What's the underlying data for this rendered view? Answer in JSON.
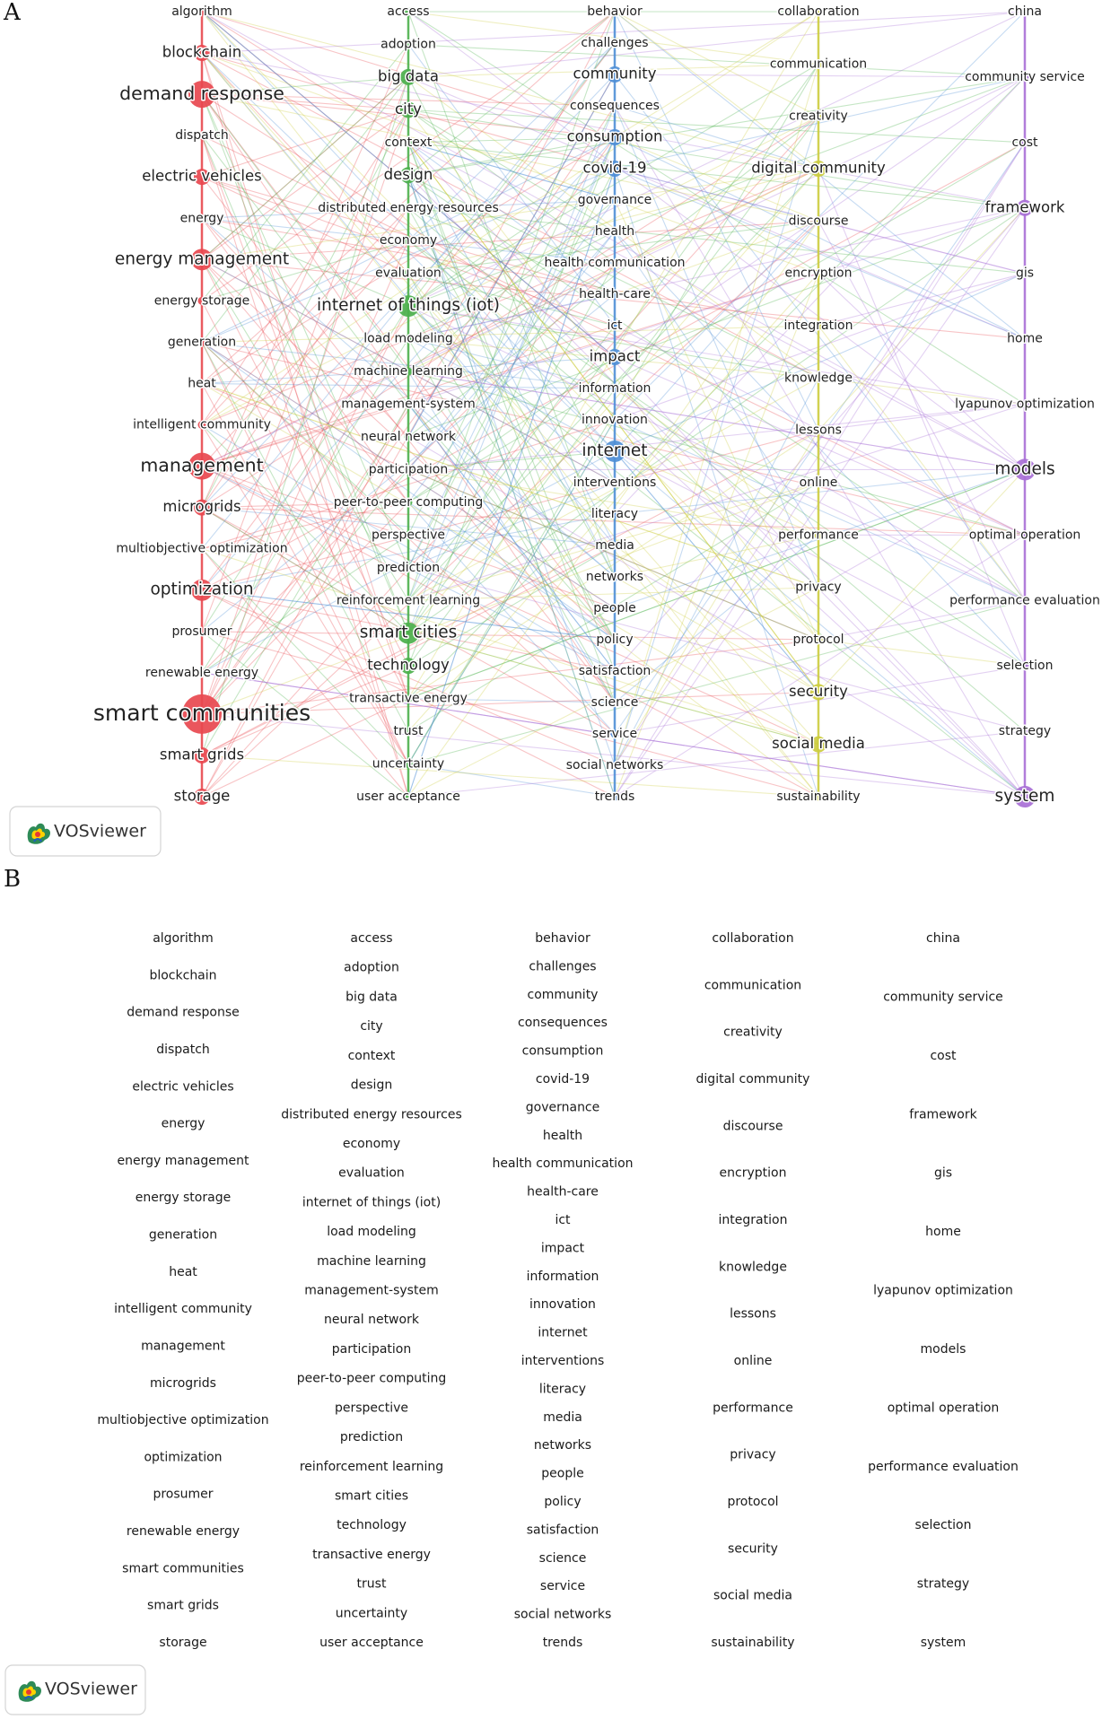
{
  "panels": {
    "a_label": "A",
    "b_label": "B",
    "logo_text": "VOSviewer"
  },
  "colors": {
    "cluster1": "#e8484f",
    "cluster2": "#4cb04c",
    "cluster3": "#4f8fd6",
    "cluster4": "#cccc3f",
    "cluster5": "#a86fd6"
  },
  "clusters": [
    {
      "id": "cluster1",
      "color": "#e8484f",
      "items": [
        {
          "label": "algorithm",
          "weight": 1
        },
        {
          "label": "blockchain",
          "weight": 2
        },
        {
          "label": "demand response",
          "weight": 4
        },
        {
          "label": "dispatch",
          "weight": 1
        },
        {
          "label": "electric vehicles",
          "weight": 2
        },
        {
          "label": "energy",
          "weight": 1
        },
        {
          "label": "energy management",
          "weight": 3
        },
        {
          "label": "energy storage",
          "weight": 1
        },
        {
          "label": "generation",
          "weight": 1
        },
        {
          "label": "heat",
          "weight": 1
        },
        {
          "label": "intelligent community",
          "weight": 1
        },
        {
          "label": "management",
          "weight": 4
        },
        {
          "label": "microgrids",
          "weight": 2
        },
        {
          "label": "multiobjective optimization",
          "weight": 1
        },
        {
          "label": "optimization",
          "weight": 3
        },
        {
          "label": "prosumer",
          "weight": 1
        },
        {
          "label": "renewable energy",
          "weight": 1
        },
        {
          "label": "smart communities",
          "weight": 6
        },
        {
          "label": "smart grids",
          "weight": 2
        },
        {
          "label": "storage",
          "weight": 2
        }
      ]
    },
    {
      "id": "cluster2",
      "color": "#4cb04c",
      "items": [
        {
          "label": "access",
          "weight": 1
        },
        {
          "label": "adoption",
          "weight": 1
        },
        {
          "label": "big data",
          "weight": 2
        },
        {
          "label": "city",
          "weight": 2
        },
        {
          "label": "context",
          "weight": 1
        },
        {
          "label": "design",
          "weight": 2
        },
        {
          "label": "distributed energy resources",
          "weight": 1
        },
        {
          "label": "economy",
          "weight": 1
        },
        {
          "label": "evaluation",
          "weight": 1
        },
        {
          "label": "internet of things (iot)",
          "weight": 3
        },
        {
          "label": "load modeling",
          "weight": 1
        },
        {
          "label": "machine learning",
          "weight": 1
        },
        {
          "label": "management-system",
          "weight": 1
        },
        {
          "label": "neural network",
          "weight": 1
        },
        {
          "label": "participation",
          "weight": 1
        },
        {
          "label": "peer-to-peer computing",
          "weight": 1
        },
        {
          "label": "perspective",
          "weight": 1
        },
        {
          "label": "prediction",
          "weight": 1
        },
        {
          "label": "reinforcement learning",
          "weight": 1
        },
        {
          "label": "smart cities",
          "weight": 3
        },
        {
          "label": "technology",
          "weight": 2
        },
        {
          "label": "transactive energy",
          "weight": 1
        },
        {
          "label": "trust",
          "weight": 1
        },
        {
          "label": "uncertainty",
          "weight": 1
        },
        {
          "label": "user acceptance",
          "weight": 1
        }
      ]
    },
    {
      "id": "cluster3",
      "color": "#4f8fd6",
      "items": [
        {
          "label": "behavior",
          "weight": 1
        },
        {
          "label": "challenges",
          "weight": 1
        },
        {
          "label": "community",
          "weight": 2
        },
        {
          "label": "consequences",
          "weight": 1
        },
        {
          "label": "consumption",
          "weight": 2
        },
        {
          "label": "covid-19",
          "weight": 2
        },
        {
          "label": "governance",
          "weight": 1
        },
        {
          "label": "health",
          "weight": 1
        },
        {
          "label": "health communication",
          "weight": 1
        },
        {
          "label": "health-care",
          "weight": 1
        },
        {
          "label": "ict",
          "weight": 1
        },
        {
          "label": "impact",
          "weight": 2
        },
        {
          "label": "information",
          "weight": 1
        },
        {
          "label": "innovation",
          "weight": 1
        },
        {
          "label": "internet",
          "weight": 3
        },
        {
          "label": "interventions",
          "weight": 1
        },
        {
          "label": "literacy",
          "weight": 1
        },
        {
          "label": "media",
          "weight": 1
        },
        {
          "label": "networks",
          "weight": 1
        },
        {
          "label": "people",
          "weight": 1
        },
        {
          "label": "policy",
          "weight": 1
        },
        {
          "label": "satisfaction",
          "weight": 1
        },
        {
          "label": "science",
          "weight": 1
        },
        {
          "label": "service",
          "weight": 1
        },
        {
          "label": "social networks",
          "weight": 1
        },
        {
          "label": "trends",
          "weight": 1
        }
      ]
    },
    {
      "id": "cluster4",
      "color": "#cccc3f",
      "items": [
        {
          "label": "collaboration",
          "weight": 1
        },
        {
          "label": "communication",
          "weight": 1
        },
        {
          "label": "creativity",
          "weight": 1
        },
        {
          "label": "digital community",
          "weight": 2
        },
        {
          "label": "discourse",
          "weight": 1
        },
        {
          "label": "encryption",
          "weight": 1
        },
        {
          "label": "integration",
          "weight": 1
        },
        {
          "label": "knowledge",
          "weight": 1
        },
        {
          "label": "lessons",
          "weight": 1
        },
        {
          "label": "online",
          "weight": 1
        },
        {
          "label": "performance",
          "weight": 1
        },
        {
          "label": "privacy",
          "weight": 1
        },
        {
          "label": "protocol",
          "weight": 1
        },
        {
          "label": "security",
          "weight": 2
        },
        {
          "label": "social media",
          "weight": 2
        },
        {
          "label": "sustainability",
          "weight": 1
        }
      ]
    },
    {
      "id": "cluster5",
      "color": "#a86fd6",
      "items": [
        {
          "label": "china",
          "weight": 1
        },
        {
          "label": "community service",
          "weight": 1
        },
        {
          "label": "cost",
          "weight": 1
        },
        {
          "label": "framework",
          "weight": 2
        },
        {
          "label": "gis",
          "weight": 1
        },
        {
          "label": "home",
          "weight": 1
        },
        {
          "label": "lyapunov optimization",
          "weight": 1
        },
        {
          "label": "models",
          "weight": 3
        },
        {
          "label": "optimal operation",
          "weight": 1
        },
        {
          "label": "performance evaluation",
          "weight": 1
        },
        {
          "label": "selection",
          "weight": 1
        },
        {
          "label": "strategy",
          "weight": 1
        },
        {
          "label": "system",
          "weight": 3
        }
      ]
    }
  ]
}
